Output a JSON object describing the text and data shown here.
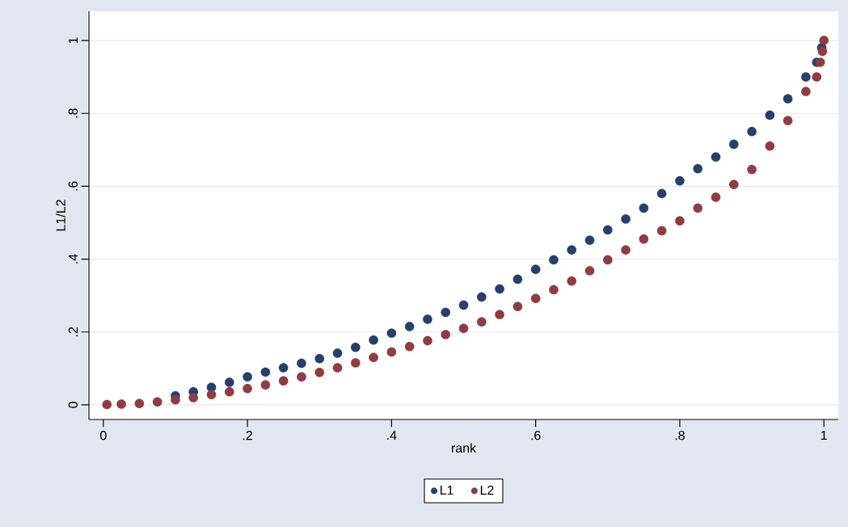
{
  "chart_data": {
    "type": "scatter",
    "xlabel": "rank",
    "ylabel": "L1/L2",
    "xlim": [
      -0.02,
      1.02
    ],
    "ylim": [
      -0.04,
      1.08
    ],
    "xticks": [
      0,
      {
        "value": 0.2,
        "label": ".2"
      },
      {
        "value": 0.4,
        "label": ".4"
      },
      {
        "value": 0.6,
        "label": ".6"
      },
      {
        "value": 0.8,
        "label": ".8"
      },
      1
    ],
    "yticks": [
      0,
      {
        "value": 0.2,
        "label": ".2"
      },
      {
        "value": 0.4,
        "label": ".4"
      },
      {
        "value": 0.6,
        "label": ".6"
      },
      {
        "value": 0.8,
        "label": ".8"
      },
      1
    ],
    "grid": "y",
    "legend": "bottom",
    "marker": "circle",
    "series": [
      {
        "name": "L1",
        "color": "#26406e",
        "x": [
          0.1,
          0.125,
          0.15,
          0.175,
          0.2,
          0.225,
          0.25,
          0.275,
          0.3,
          0.325,
          0.35,
          0.375,
          0.4,
          0.425,
          0.45,
          0.475,
          0.5,
          0.525,
          0.55,
          0.575,
          0.6,
          0.625,
          0.65,
          0.675,
          0.7,
          0.725,
          0.75,
          0.775,
          0.8,
          0.825,
          0.85,
          0.875,
          0.9,
          0.925,
          0.95,
          0.975,
          0.99,
          0.997
        ],
        "values": [
          0.025,
          0.036,
          0.048,
          0.062,
          0.077,
          0.09,
          0.102,
          0.114,
          0.127,
          0.142,
          0.158,
          0.178,
          0.197,
          0.215,
          0.235,
          0.254,
          0.274,
          0.296,
          0.318,
          0.345,
          0.372,
          0.398,
          0.425,
          0.452,
          0.48,
          0.51,
          0.54,
          0.58,
          0.615,
          0.648,
          0.68,
          0.715,
          0.75,
          0.795,
          0.84,
          0.9,
          0.94,
          0.98
        ]
      },
      {
        "name": "L2",
        "color": "#903c40",
        "x": [
          0.005,
          0.025,
          0.05,
          0.075,
          0.1,
          0.125,
          0.15,
          0.175,
          0.2,
          0.225,
          0.25,
          0.275,
          0.3,
          0.325,
          0.35,
          0.375,
          0.4,
          0.425,
          0.45,
          0.475,
          0.5,
          0.525,
          0.55,
          0.575,
          0.6,
          0.625,
          0.65,
          0.675,
          0.7,
          0.725,
          0.75,
          0.775,
          0.8,
          0.825,
          0.85,
          0.875,
          0.9,
          0.925,
          0.95,
          0.975,
          0.99,
          0.995,
          0.998,
          1.0
        ],
        "values": [
          0.001,
          0.002,
          0.004,
          0.008,
          0.014,
          0.02,
          0.028,
          0.036,
          0.045,
          0.055,
          0.066,
          0.077,
          0.089,
          0.102,
          0.115,
          0.13,
          0.145,
          0.16,
          0.176,
          0.193,
          0.21,
          0.228,
          0.248,
          0.27,
          0.292,
          0.316,
          0.34,
          0.368,
          0.398,
          0.425,
          0.455,
          0.478,
          0.505,
          0.54,
          0.57,
          0.605,
          0.646,
          0.71,
          0.78,
          0.86,
          0.9,
          0.94,
          0.97,
          1.0
        ]
      }
    ]
  }
}
